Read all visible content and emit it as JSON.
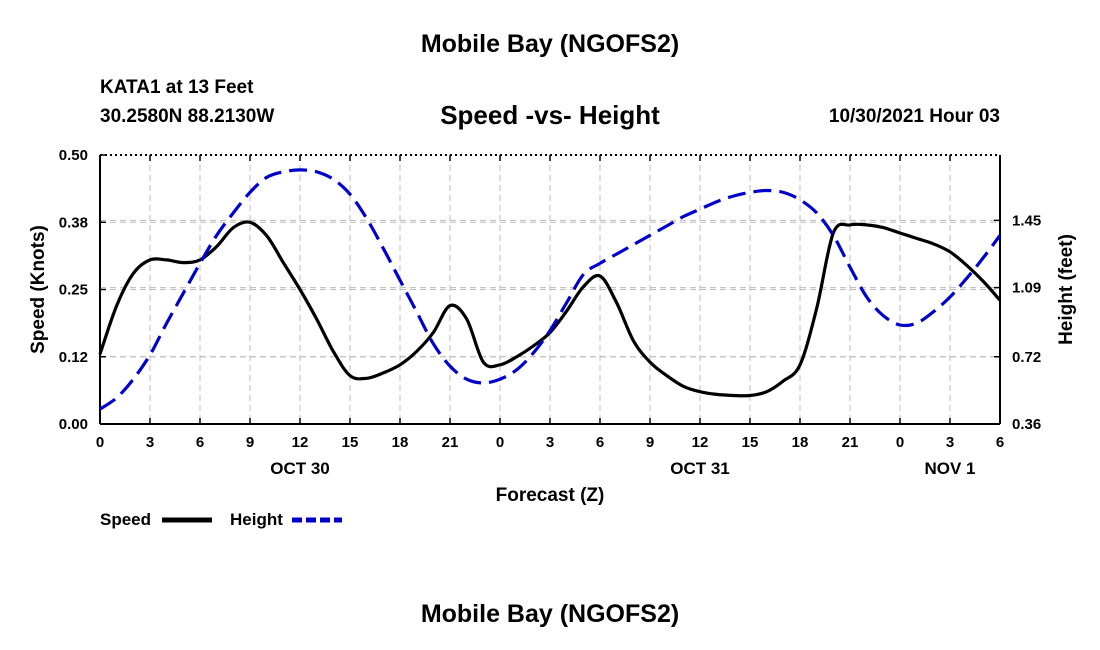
{
  "header": {
    "title_top": "Mobile Bay (NGOFS2)",
    "station_name": "KATA1 at 13 Feet",
    "station_coords": "30.2580N  88.2130W",
    "chart_title": "Speed -vs- Height",
    "forecast_time": "10/30/2021 Hour 03",
    "title_bottom": "Mobile Bay (NGOFS2)"
  },
  "chart_data": {
    "type": "line",
    "title": "Speed -vs- Height",
    "xlabel": "Forecast (Z)",
    "ylabel": "Speed (Knots)",
    "y2label": "Height (feet)",
    "x_range": [
      0,
      54
    ],
    "ylim": [
      0,
      0.5
    ],
    "y2lim": [
      0.36,
      1.8
    ],
    "x_tick_labels": [
      "0",
      "3",
      "6",
      "9",
      "12",
      "15",
      "18",
      "21",
      "0",
      "3",
      "6",
      "9",
      "12",
      "15",
      "18",
      "21",
      "0",
      "3",
      "6"
    ],
    "y_ticks": [
      "0.00",
      "0.12",
      "0.25",
      "0.38",
      "0.50"
    ],
    "y_tick_values": [
      0,
      0.125,
      0.25,
      0.375,
      0.5
    ],
    "y2_ticks": [
      "0.36",
      "0.72",
      "1.09",
      "1.45"
    ],
    "y2_tick_values": [
      0.36,
      0.72,
      1.09,
      1.45
    ],
    "date_labels": [
      {
        "text": "OCT 30",
        "x": 12
      },
      {
        "text": "OCT 31",
        "x": 36
      },
      {
        "text": "NOV 1",
        "x": 51
      }
    ],
    "grid": true,
    "colors": {
      "speed": "#000000",
      "height": "#0000cc",
      "grid": "#bbbbbb"
    },
    "series": [
      {
        "name": "Speed",
        "axis": "left",
        "style": "solid",
        "x": [
          0,
          1,
          2,
          3,
          4,
          5,
          6,
          7,
          8,
          9,
          10,
          11,
          12,
          13,
          14,
          15,
          16,
          17,
          18,
          19,
          20,
          21,
          22,
          23,
          24,
          25,
          26,
          27,
          28,
          29,
          30,
          31,
          32,
          33,
          34,
          35,
          36,
          37,
          38,
          39,
          40,
          41,
          42,
          43,
          44,
          45,
          46,
          47,
          48,
          49,
          50,
          51,
          52,
          53,
          54
        ],
        "values": [
          0.13,
          0.22,
          0.28,
          0.305,
          0.305,
          0.3,
          0.305,
          0.33,
          0.365,
          0.375,
          0.35,
          0.3,
          0.25,
          0.195,
          0.135,
          0.09,
          0.085,
          0.095,
          0.11,
          0.135,
          0.17,
          0.22,
          0.195,
          0.115,
          0.11,
          0.125,
          0.145,
          0.17,
          0.21,
          0.255,
          0.275,
          0.225,
          0.155,
          0.115,
          0.09,
          0.07,
          0.06,
          0.055,
          0.053,
          0.053,
          0.06,
          0.08,
          0.11,
          0.215,
          0.355,
          0.37,
          0.37,
          0.365,
          0.355,
          0.345,
          0.335,
          0.32,
          0.295,
          0.265,
          0.23
        ]
      },
      {
        "name": "Height",
        "axis": "right",
        "style": "dashed",
        "x": [
          0,
          1,
          2,
          3,
          4,
          5,
          6,
          7,
          8,
          9,
          10,
          11,
          12,
          13,
          14,
          15,
          16,
          17,
          18,
          19,
          20,
          21,
          22,
          23,
          24,
          25,
          26,
          27,
          28,
          29,
          30,
          31,
          32,
          33,
          34,
          35,
          36,
          37,
          38,
          39,
          40,
          41,
          42,
          43,
          44,
          45,
          46,
          47,
          48,
          49,
          50,
          51,
          52,
          53,
          54
        ],
        "values": [
          0.44,
          0.5,
          0.6,
          0.73,
          0.9,
          1.06,
          1.22,
          1.37,
          1.49,
          1.6,
          1.68,
          1.71,
          1.72,
          1.71,
          1.67,
          1.59,
          1.46,
          1.3,
          1.13,
          0.96,
          0.79,
          0.67,
          0.6,
          0.58,
          0.6,
          0.65,
          0.74,
          0.86,
          1.01,
          1.16,
          1.22,
          1.27,
          1.32,
          1.37,
          1.42,
          1.47,
          1.51,
          1.55,
          1.58,
          1.6,
          1.61,
          1.6,
          1.56,
          1.49,
          1.37,
          1.2,
          1.04,
          0.94,
          0.89,
          0.9,
          0.96,
          1.04,
          1.14,
          1.25,
          1.37
        ]
      }
    ]
  }
}
